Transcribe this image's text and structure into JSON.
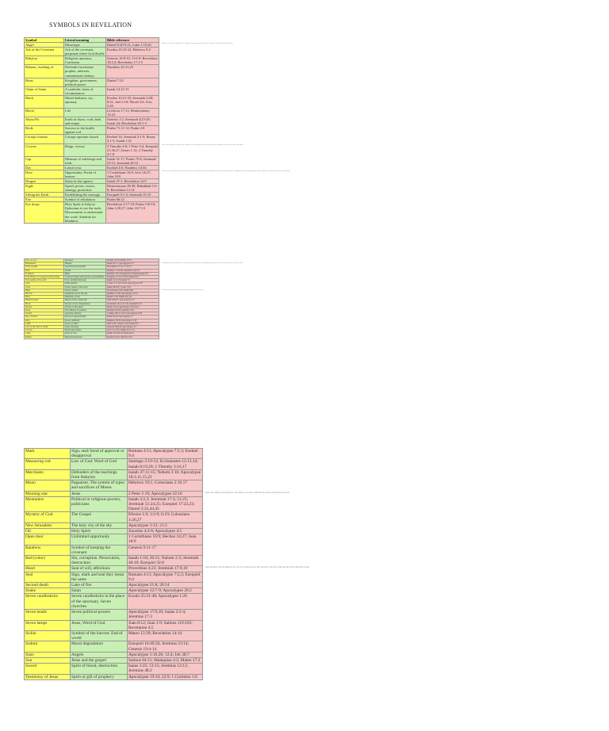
{
  "title": "SYMBOLS IN REVELATION",
  "tables": [
    {
      "header": [
        "Symbol",
        "Literal meaning",
        "Bible reference"
      ],
      "rows": [
        [
          "Angel",
          "Messenger",
          "Daniel 9:20-9:21; Luke 1:19,26",
          "Hebrews 1:14; Revelation 14:6 - angels are messengers of God sent to those who will inherit salvation"
        ],
        [
          "Ark of the Covenant",
          "Ark of the covenant, perpetual where God dwells",
          "Exodus 25:10-22; Hebrews 9:4"
        ],
        [
          "Babylon",
          "Religious apostasy; Confusion",
          "Genesis 10:8-10; 11:6-9; Revelation 18:2,3; Revelation 17:1-5"
        ],
        [
          "Balaam, teaching of",
          "Defender incestuous prophet, interests, commitment idolatry",
          "Numbers 22-31,25"
        ],
        [
          "Beast",
          "Kingdom, government, political power",
          "Daniel 7:23"
        ],
        [
          "Chain of Satan",
          "A symbolic chain of circumstances",
          "Isaiah 14:12-15"
        ],
        [
          "Black",
          "Moral darkness, sin, apostasy",
          "Exodus 10:21-23; Jeremiah 4:28; 8:21; Joel 2:10; Micah 3:6; Acts 2:20"
        ],
        [
          "Blood",
          "Life",
          "Leviticus 17:11; Deuteronomy 12:23"
        ],
        [
          "Abyss/Pit",
          "Earth in chaos, void, dark and empty",
          "Genesis 1:2; Jeremiah 4:23-28; Isaiah 24; Revelation 20:1-3"
        ],
        [
          "Bride",
          "Success to the health against evil",
          "Psalm 71:11-12; Psalm 3:8"
        ],
        [
          "Corrupt woman",
          "Corrupt apostate church",
          "Ezekiel 16; Jeremiah 3:1-9; Hosea 2:1-5; Isaiah 1:21"
        ],
        [
          "Crowns",
          "Reign, victory",
          "2 Timothy 4:8; 1 Peter 5:4; Ezequiel 21:26,27; James 1:12; 2 Timothy 4:7,8",
          "The crown is given to those who endure; it is the symbol of the victory that the faithful receive at the end of the battle"
        ],
        [
          "Cup",
          "Measure of sufferings and trials",
          "Isaiah 51:17; Psalm 75:8; Jeremiah 25:15; Jeremiah 49:12"
        ],
        [
          "Day",
          "Literal year",
          "Ezekiel 4:6; Numbers 14:34"
        ],
        [
          "Door",
          "Opportunity; Portal of heaven",
          "1 Corinthians 16:9; Acts 14:27; John 10:9",
          "The door is Christ; by him if any man enter in he shall be saved and shall go in and out and find pasture. Opportunity of the gospel given to the nations, an open door before the churches"
        ],
        [
          "Dragon",
          "Satan in this agency",
          "Isaiah 27:1; Revelation 12:9"
        ],
        [
          "Eagle",
          "Speed, power, vision, strategy, protection",
          "Deuteronomy 28:49; Habakkuk 1:6-8; Revelation 12:14"
        ],
        [
          "Sifting the Earth",
          "Establishing the message",
          "Ezequiel 9:1-4; Jeremiah 15:10"
        ],
        [
          "Fire",
          "Symbol of tribulation",
          "Psalm 66:12"
        ],
        [
          "Eye drops",
          "Holy Spirit to help us Ephesians to see the truth. Discernment to understand the word. Antidote for blindness",
          "Revelation 3:17-18; Psalm 119:18; John 2:20,27; John 16:7-13"
        ]
      ]
    },
    {
      "rows": [
        [
          "Face of God",
          "Presence",
          "Exodus 33:14; Psalm 17:15"
        ],
        [
          "Hiddenness",
          "Hidden",
          "Isaiah 45:15; Apocalypse 2:17",
          "The hidden manna is the bread of life; those who overcome shall eat of the hidden manna and receive the white stone with a new name written"
        ],
        [
          "False prophet",
          "Apostate Protestantism",
          "Revelation 13:11-17; 16:13"
        ],
        [
          "Fruit",
          "Works",
          "Matthew 7:16-20; Galatians 5:22-23"
        ],
        [
          "Forehead",
          "Mind",
          "Romans 7:25; Ezequiel 9:4; Deuteronomy 6:8"
        ],
        [
          "Four Beasts or Creatures living beings",
          "Celestial beings with special responsibilities",
          "Ezequiel 1:5-14; 10:20; Isaiah 6:2,3"
        ],
        [
          "Four points of the earth",
          "Four cardinal directions",
          "Isaiah 11:12; Ezequiel 7:2"
        ],
        [
          "Gold",
          "Faith purified",
          "1 Peter 1:7; Job 23:10; Apocalypse 3:18"
        ],
        [
          "Grass",
          "Flesh, people of the earth",
          "Isaiah 40:6-8; 1 Peter 1:24"
        ],
        [
          "Hand",
          "Work, conduct",
          "Ecclesiastes 9:10; Isaiah 59:6",
          "The mark in the hand represents the works of those who follow the beast"
        ],
        [
          "Harvest",
          "Judgment; end of the age",
          "Matthew 13:39; Apocalypse 14:15"
        ],
        [
          "Horn",
          "Kingdom, power",
          "Daniel 7:24; Daniel 8:21,22"
        ],
        [
          "Hidden manna",
          "Bread of life; eternal life",
          "John 6:48-51; Apocalypse 2:17"
        ],
        [
          "Horse",
          "People of God, dispensation",
          "Zechariah 1:8-11; 6:1-8; Jeremiah 4:13"
        ],
        [
          "Incense",
          "Prayers of the saints",
          "Psalm 141:2; Apocalypse 5:8; 8:3,4"
        ],
        [
          "Israel",
          "The children of promise",
          "Romans 9:6-8; Galatians 3:29"
        ],
        [
          "Jezebel",
          "Apostasy, idolatry",
          "1 Kings 16:31; 21:25; Apocalypse 2:20"
        ],
        [
          "Key of David",
          "Power to open and shut",
          "Isaiah 22:22; Apocalypse 3:7"
        ],
        [
          "Keys",
          "Power, authority",
          "Matthew 16:19; Apocalypse 1:18"
        ],
        [
          "Lamb",
          "Jesus, sacrifice",
          "John 1:29; 1 Peter 1:19; Isaiah 53:7"
        ],
        [
          "Lion of the tribe of Judah",
          "Jesus, the King",
          "Genesis 49:9,10; Apocalypse 5:5"
        ],
        [
          "Locusts",
          "Destroying armies",
          "Joel 1:4; 2:25; Judges 6:5; 7:12"
        ],
        [
          "Lamp",
          "Word of God",
          "Psalm 119:105; Proverbs 6:23"
        ],
        [
          "Manna",
          "Bread from heaven",
          "Exodus 16:15; John 6:31-35"
        ]
      ]
    },
    {
      "rows": [
        [
          "Mark",
          "Sign, seal/ bond of approval or disapproval",
          "Romans 4:11; Apocalypse 7:2,3; Ezekiel 9:4"
        ],
        [
          "Measuring rod",
          "Law of God. Word of God",
          "Santiago 2:10-12; Ecclesiastes 12:13,14; Isaiah 8:19,20; 2 Timothy 3:16,17"
        ],
        [
          "Merchants",
          "Defenders of the teachings from Babylon",
          "Isaiah 47:11-15; Nahum 3:16; Apocalypse 18:3,11,15,23"
        ],
        [
          "Moon",
          "Paganism. The system of types and sacrifices of Moses",
          "Hebrews 10:1; Colossians 2:16,17"
        ],
        [
          "Morning star",
          "Jesus",
          "2 Peter 1:19; Apocalypse 22:16",
          "Jesus, the bright and morning star, who shines in our hearts until the day dawns and the day star arises"
        ],
        [
          "Mountains",
          "Political or religious powers, politicians",
          "Isaiah 2:2,3; Jeremiah 17:3; 51:25; Jeremiah 51:24,25; Ezequiel 17:22,23; Daniel 2:35,44,45"
        ],
        [
          "Mystery of God",
          "The Gospel",
          "Efesios 1:9; 3:3-9; 6:19; Colossians 1:26,27"
        ],
        [
          "New Jerusalem",
          "The holy city of the sky",
          "Apocalypse 3:12; 21:2"
        ],
        [
          "Oil",
          "Holy Spirit",
          "Zacarías 4:2-6; Apocalypse 4:5"
        ],
        [
          "Open door",
          "Unlimited opportunity",
          "1 Corinthians 16:9; Hechos 14:27; Juan 10:9"
        ],
        [
          "Rainbow",
          "Symbol of keeping the covenant",
          "Genesis 9:11-17"
        ],
        [
          "Red (color)",
          "Sin, corruption. Persecution, destruction",
          "Isaiah 1:18; 26:21; Nahum 2:3; Jeremiah 46:10; Ezequiel 32:6"
        ],
        [
          "Heart",
          "Seat of will, affections",
          "Proverbios 4:23; Jeremiah 17:9,10",
          "Keep thy heart with all diligence, for out of it are the issues of life; the heart is the seat of the will and of the affections of man"
        ],
        [
          "Seal",
          "Sign, mark and seal they mean the same",
          "Romans 4:11; Apocalypse 7:2,3; Ezequiel 9:4"
        ],
        [
          "Second death",
          "Lake of fire",
          "Apocalypse 21:8; 20:14"
        ],
        [
          "Snake",
          "Satan",
          "Apocalypse 12:7-9; Apocalypse 20:2"
        ],
        [
          "Seven candlesticks",
          "Seven candlesticks in the place of the sanctuary. Seven churches",
          "Exodo 25:31-40; Apocalypse 1:20"
        ],
        [
          "Seven heads",
          "Seven political powers",
          "Apocalypse 17:9,10; Isaias 2:2-4; Jeremias 17:3"
        ],
        [
          "Seven lamps",
          "Jesus, Word of God",
          "Juan 8:12; Juan 1:9; Salmos 119:105; Revelation 4:5"
        ],
        [
          "Sickle",
          "Symbol of the harvest. End of world",
          "Mateo 13:39; Revelation 14:14"
        ],
        [
          "Sodom",
          "Moral degradation",
          "Ezequiel 16:49,50; Jeremias 23:14; Genesis 19:4-14"
        ],
        [
          "Stars",
          "Angels",
          "Apocalypse 1:16,20; 12:4; Job 38:7"
        ],
        [
          "Sun",
          "Jesus and the gospel",
          "Salmos 84:11; Malaquias 4:2; Mateo 17:2"
        ],
        [
          "Sword",
          "Spirit of blood, destruction",
          "Isaias 3:25; 13:15; Jeremias 12:12; Jeremias 48:2"
        ],
        [
          "Testimony of Jesus",
          "Spirit or gift of prophecy",
          "Apocalypse 19:10; 22:9; 1 Corintios 1:6"
        ]
      ]
    }
  ]
}
